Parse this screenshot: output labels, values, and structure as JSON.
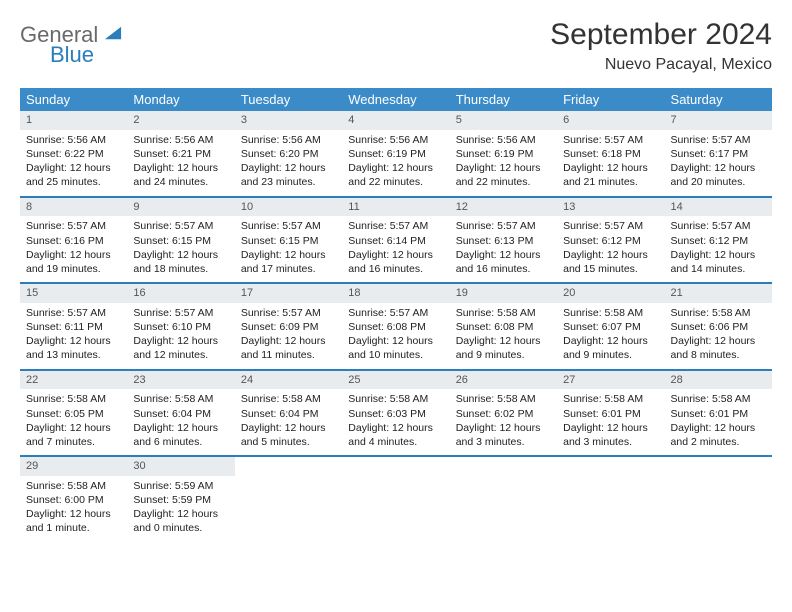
{
  "brand": {
    "word1": "General",
    "word2": "Blue",
    "logo_color": "#2a7fba",
    "text_gray": "#6a6a6a"
  },
  "title": "September 2024",
  "subtitle": "Nuevo Pacayal, Mexico",
  "header_bg": "#3b8bc8",
  "rule_color": "#2a7fba",
  "daynum_bg": "#e9ecef",
  "weekdays": [
    "Sunday",
    "Monday",
    "Tuesday",
    "Wednesday",
    "Thursday",
    "Friday",
    "Saturday"
  ],
  "weeks": [
    [
      {
        "n": "1",
        "sr": "Sunrise: 5:56 AM",
        "ss": "Sunset: 6:22 PM",
        "d1": "Daylight: 12 hours",
        "d2": "and 25 minutes."
      },
      {
        "n": "2",
        "sr": "Sunrise: 5:56 AM",
        "ss": "Sunset: 6:21 PM",
        "d1": "Daylight: 12 hours",
        "d2": "and 24 minutes."
      },
      {
        "n": "3",
        "sr": "Sunrise: 5:56 AM",
        "ss": "Sunset: 6:20 PM",
        "d1": "Daylight: 12 hours",
        "d2": "and 23 minutes."
      },
      {
        "n": "4",
        "sr": "Sunrise: 5:56 AM",
        "ss": "Sunset: 6:19 PM",
        "d1": "Daylight: 12 hours",
        "d2": "and 22 minutes."
      },
      {
        "n": "5",
        "sr": "Sunrise: 5:56 AM",
        "ss": "Sunset: 6:19 PM",
        "d1": "Daylight: 12 hours",
        "d2": "and 22 minutes."
      },
      {
        "n": "6",
        "sr": "Sunrise: 5:57 AM",
        "ss": "Sunset: 6:18 PM",
        "d1": "Daylight: 12 hours",
        "d2": "and 21 minutes."
      },
      {
        "n": "7",
        "sr": "Sunrise: 5:57 AM",
        "ss": "Sunset: 6:17 PM",
        "d1": "Daylight: 12 hours",
        "d2": "and 20 minutes."
      }
    ],
    [
      {
        "n": "8",
        "sr": "Sunrise: 5:57 AM",
        "ss": "Sunset: 6:16 PM",
        "d1": "Daylight: 12 hours",
        "d2": "and 19 minutes."
      },
      {
        "n": "9",
        "sr": "Sunrise: 5:57 AM",
        "ss": "Sunset: 6:15 PM",
        "d1": "Daylight: 12 hours",
        "d2": "and 18 minutes."
      },
      {
        "n": "10",
        "sr": "Sunrise: 5:57 AM",
        "ss": "Sunset: 6:15 PM",
        "d1": "Daylight: 12 hours",
        "d2": "and 17 minutes."
      },
      {
        "n": "11",
        "sr": "Sunrise: 5:57 AM",
        "ss": "Sunset: 6:14 PM",
        "d1": "Daylight: 12 hours",
        "d2": "and 16 minutes."
      },
      {
        "n": "12",
        "sr": "Sunrise: 5:57 AM",
        "ss": "Sunset: 6:13 PM",
        "d1": "Daylight: 12 hours",
        "d2": "and 16 minutes."
      },
      {
        "n": "13",
        "sr": "Sunrise: 5:57 AM",
        "ss": "Sunset: 6:12 PM",
        "d1": "Daylight: 12 hours",
        "d2": "and 15 minutes."
      },
      {
        "n": "14",
        "sr": "Sunrise: 5:57 AM",
        "ss": "Sunset: 6:12 PM",
        "d1": "Daylight: 12 hours",
        "d2": "and 14 minutes."
      }
    ],
    [
      {
        "n": "15",
        "sr": "Sunrise: 5:57 AM",
        "ss": "Sunset: 6:11 PM",
        "d1": "Daylight: 12 hours",
        "d2": "and 13 minutes."
      },
      {
        "n": "16",
        "sr": "Sunrise: 5:57 AM",
        "ss": "Sunset: 6:10 PM",
        "d1": "Daylight: 12 hours",
        "d2": "and 12 minutes."
      },
      {
        "n": "17",
        "sr": "Sunrise: 5:57 AM",
        "ss": "Sunset: 6:09 PM",
        "d1": "Daylight: 12 hours",
        "d2": "and 11 minutes."
      },
      {
        "n": "18",
        "sr": "Sunrise: 5:57 AM",
        "ss": "Sunset: 6:08 PM",
        "d1": "Daylight: 12 hours",
        "d2": "and 10 minutes."
      },
      {
        "n": "19",
        "sr": "Sunrise: 5:58 AM",
        "ss": "Sunset: 6:08 PM",
        "d1": "Daylight: 12 hours",
        "d2": "and 9 minutes."
      },
      {
        "n": "20",
        "sr": "Sunrise: 5:58 AM",
        "ss": "Sunset: 6:07 PM",
        "d1": "Daylight: 12 hours",
        "d2": "and 9 minutes."
      },
      {
        "n": "21",
        "sr": "Sunrise: 5:58 AM",
        "ss": "Sunset: 6:06 PM",
        "d1": "Daylight: 12 hours",
        "d2": "and 8 minutes."
      }
    ],
    [
      {
        "n": "22",
        "sr": "Sunrise: 5:58 AM",
        "ss": "Sunset: 6:05 PM",
        "d1": "Daylight: 12 hours",
        "d2": "and 7 minutes."
      },
      {
        "n": "23",
        "sr": "Sunrise: 5:58 AM",
        "ss": "Sunset: 6:04 PM",
        "d1": "Daylight: 12 hours",
        "d2": "and 6 minutes."
      },
      {
        "n": "24",
        "sr": "Sunrise: 5:58 AM",
        "ss": "Sunset: 6:04 PM",
        "d1": "Daylight: 12 hours",
        "d2": "and 5 minutes."
      },
      {
        "n": "25",
        "sr": "Sunrise: 5:58 AM",
        "ss": "Sunset: 6:03 PM",
        "d1": "Daylight: 12 hours",
        "d2": "and 4 minutes."
      },
      {
        "n": "26",
        "sr": "Sunrise: 5:58 AM",
        "ss": "Sunset: 6:02 PM",
        "d1": "Daylight: 12 hours",
        "d2": "and 3 minutes."
      },
      {
        "n": "27",
        "sr": "Sunrise: 5:58 AM",
        "ss": "Sunset: 6:01 PM",
        "d1": "Daylight: 12 hours",
        "d2": "and 3 minutes."
      },
      {
        "n": "28",
        "sr": "Sunrise: 5:58 AM",
        "ss": "Sunset: 6:01 PM",
        "d1": "Daylight: 12 hours",
        "d2": "and 2 minutes."
      }
    ],
    [
      {
        "n": "29",
        "sr": "Sunrise: 5:58 AM",
        "ss": "Sunset: 6:00 PM",
        "d1": "Daylight: 12 hours",
        "d2": "and 1 minute."
      },
      {
        "n": "30",
        "sr": "Sunrise: 5:59 AM",
        "ss": "Sunset: 5:59 PM",
        "d1": "Daylight: 12 hours",
        "d2": "and 0 minutes."
      },
      {
        "empty": true
      },
      {
        "empty": true
      },
      {
        "empty": true
      },
      {
        "empty": true
      },
      {
        "empty": true
      }
    ]
  ]
}
